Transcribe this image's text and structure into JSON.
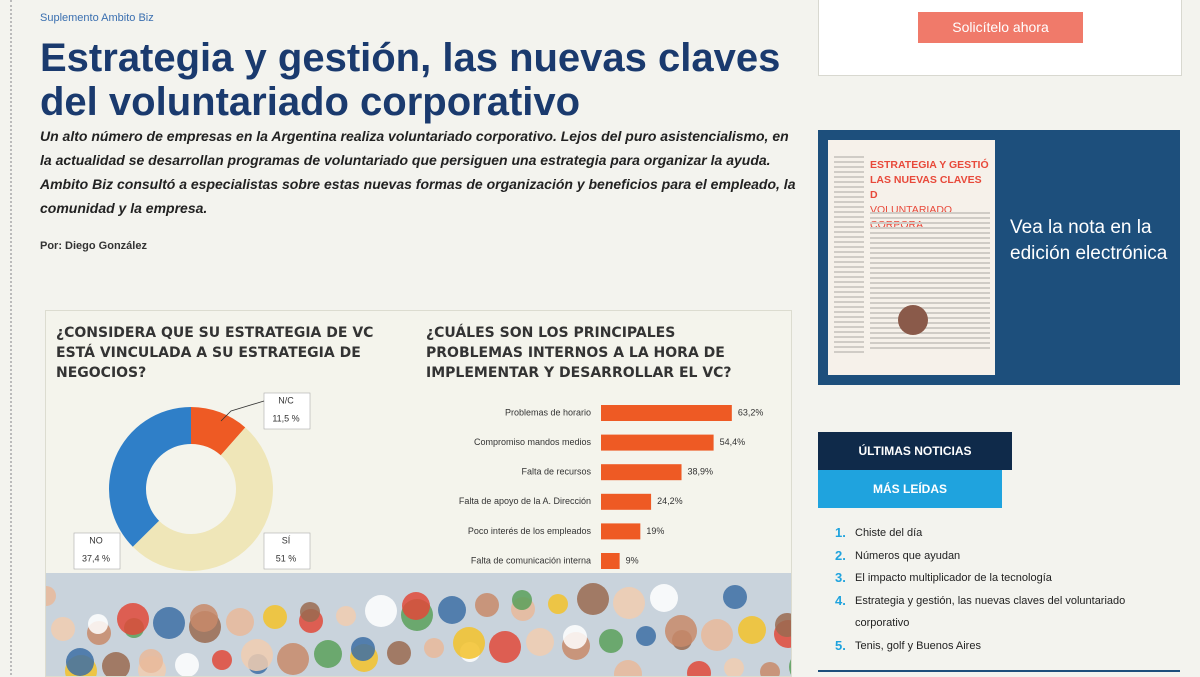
{
  "article": {
    "section": "Suplemento Ambito Biz",
    "title": "Estrategia y gestión, las nuevas claves del voluntariado corporativo",
    "lead": "Un alto número de empresas en la Argentina realiza voluntariado corporativo. Lejos del puro asistencialismo, en la actualidad se desarrollan programas de voluntariado que persiguen una estrategia para organizar la ayuda. Ambito Biz consultó a especialistas sobre estas nuevas formas de organización y beneficios para el empleado, la comunidad y la empresa.",
    "byline": "Por: Diego González"
  },
  "infographic": {
    "donut": {
      "type": "pie",
      "title": "¿CONSIDERA QUE SU ESTRATEGIA DE VC ESTÁ VINCULADA A SU ESTRATEGIA DE NEGOCIOS?",
      "categories": [
        "N/C",
        "SÍ",
        "NO"
      ],
      "values": [
        11.5,
        51,
        37.4
      ],
      "value_labels": [
        "11,5 %",
        "51 %",
        "37,4 %"
      ],
      "colors": [
        "#ee5a24",
        "#efe6b8",
        "#2f7fc8"
      ]
    },
    "bars": {
      "type": "bar",
      "title": "¿CUÁLES SON LOS PRINCIPALES PROBLEMAS INTERNOS A LA HORA DE IMPLEMENTAR Y DESARROLLAR EL VC?",
      "categories": [
        "Problemas de horario",
        "Compromiso mandos medios",
        "Falta de recursos",
        "Falta de apoyo de la A. Dirección",
        "Poco interés de los empleados",
        "Falta de comunicación interna"
      ],
      "values": [
        63.2,
        54.4,
        38.9,
        24.2,
        19,
        9
      ],
      "value_labels": [
        "63,2%",
        "54,4%",
        "38,9%",
        "24,2%",
        "19%",
        "9%"
      ],
      "color": "#ee5a24"
    }
  },
  "sidebar": {
    "button": "Solicítelo ahora",
    "edition": {
      "thumbnail_headline": [
        "ESTRATEGIA Y GESTIÓ",
        "LAS NUEVAS CLAVES D",
        "VOLUNTARIADO CORPORA"
      ],
      "text": "Vea la nota en la edición electrónica"
    },
    "tabs": [
      "ÚLTIMAS NOTICIAS",
      "MÁS LEÍDAS"
    ],
    "most_read": [
      {
        "rank": "1.",
        "title": "Chiste del día"
      },
      {
        "rank": "2.",
        "title": "Números que ayudan"
      },
      {
        "rank": "3.",
        "title": "El impacto multiplicador de la tecnología"
      },
      {
        "rank": "4.",
        "title": "Estrategia y gestión, las nuevas claves del voluntariado corporativo"
      },
      {
        "rank": "5.",
        "title": "Tenis, golf y Buenos Aires"
      }
    ]
  }
}
